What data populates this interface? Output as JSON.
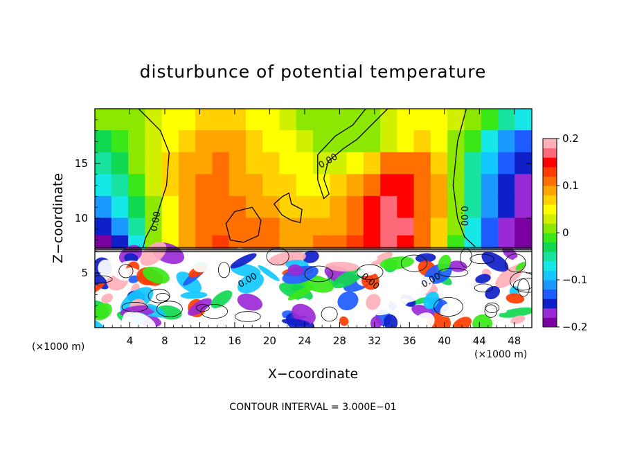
{
  "chart_data": {
    "type": "heatmap",
    "title": "disturbunce of potential temperature",
    "xlabel": "X−coordinate",
    "ylabel": "Z−coordinate",
    "x_unit_left": "(×1000 m)",
    "x_unit_right": "(×1000 m)",
    "footer": "CONTOUR INTERVAL = 3.000E−01",
    "xlim": [
      0,
      50000
    ],
    "ylim": [
      0,
      20000
    ],
    "x_ticks": [
      4000,
      8000,
      12000,
      16000,
      20000,
      24000,
      28000,
      32000,
      36000,
      40000,
      44000,
      48000
    ],
    "x_tick_labels": [
      "4",
      "8",
      "12",
      "16",
      "20",
      "24",
      "28",
      "32",
      "36",
      "40",
      "44",
      "48"
    ],
    "y_ticks": [
      5000,
      10000,
      15000
    ],
    "y_tick_labels": [
      "5",
      "10",
      "15"
    ],
    "colorbar": {
      "vmin": -0.2,
      "vmax": 0.2,
      "tick_values": [
        0.2,
        0.1,
        0,
        -0.1,
        -0.2
      ],
      "tick_labels": [
        "0.2",
        "0.1",
        "0",
        "−0.1",
        "−0.2"
      ],
      "colors": [
        "#7a00a0",
        "#9a2ad6",
        "#1020c8",
        "#1e5cff",
        "#1a98ff",
        "#12c8ff",
        "#16e8e8",
        "#18e2a0",
        "#10d850",
        "#3ae818",
        "#8ce800",
        "#d0f000",
        "#ffff00",
        "#ffd200",
        "#ffa500",
        "#ff7000",
        "#ff3c00",
        "#ff0000",
        "#ff6a7a",
        "#ffb0b8"
      ]
    },
    "contour_labels": [
      "0.00",
      "0.00",
      "0.00",
      "0.00",
      "0.00",
      "0.00"
    ],
    "upper_layer_rows": [
      {
        "z": 19000,
        "values": [
          0.0,
          0.01,
          0.02,
          0.03,
          0.04,
          0.05,
          0.06,
          0.07,
          0.06,
          0.05,
          0.04,
          0.03,
          0.02,
          0.01,
          0.0,
          0.01,
          0.02,
          0.03,
          0.04,
          0.05,
          0.05,
          0.03,
          0.01,
          -0.02,
          -0.05,
          -0.08
        ]
      },
      {
        "z": 17000,
        "values": [
          -0.03,
          -0.01,
          0.01,
          0.03,
          0.05,
          0.07,
          0.08,
          0.09,
          0.08,
          0.06,
          0.05,
          0.04,
          0.03,
          0.02,
          0.01,
          0.01,
          0.02,
          0.03,
          0.05,
          0.06,
          0.05,
          0.02,
          -0.02,
          -0.07,
          -0.11,
          -0.14
        ]
      },
      {
        "z": 15000,
        "values": [
          -0.06,
          -0.03,
          0.0,
          0.03,
          0.06,
          0.08,
          0.09,
          0.1,
          0.09,
          0.07,
          0.06,
          0.05,
          0.04,
          0.03,
          0.03,
          0.04,
          0.07,
          0.1,
          0.11,
          0.1,
          0.07,
          0.01,
          -0.05,
          -0.1,
          -0.14,
          -0.16
        ]
      },
      {
        "z": 13000,
        "values": [
          -0.08,
          -0.05,
          -0.01,
          0.03,
          0.06,
          0.08,
          0.1,
          0.1,
          0.09,
          0.08,
          0.07,
          0.06,
          0.05,
          0.05,
          0.06,
          0.09,
          0.12,
          0.14,
          0.14,
          0.12,
          0.08,
          0.0,
          -0.06,
          -0.11,
          -0.15,
          -0.17
        ]
      },
      {
        "z": 11000,
        "values": [
          -0.11,
          -0.08,
          -0.03,
          0.02,
          0.05,
          0.08,
          0.1,
          0.11,
          0.1,
          0.09,
          0.08,
          0.07,
          0.06,
          0.06,
          0.08,
          0.11,
          0.14,
          0.16,
          0.15,
          0.12,
          0.08,
          0.01,
          -0.06,
          -0.12,
          -0.16,
          -0.18
        ]
      },
      {
        "z": 9000,
        "values": [
          -0.16,
          -0.12,
          -0.05,
          0.01,
          0.05,
          0.08,
          0.11,
          0.12,
          0.12,
          0.11,
          0.1,
          0.09,
          0.08,
          0.08,
          0.09,
          0.12,
          0.15,
          0.17,
          0.16,
          0.12,
          0.07,
          0.0,
          -0.07,
          -0.13,
          -0.17,
          -0.19
        ]
      },
      {
        "z": 7800,
        "values": [
          -0.19,
          -0.15,
          -0.08,
          0.0,
          0.05,
          0.09,
          0.12,
          0.13,
          0.12,
          0.11,
          0.1,
          0.09,
          0.09,
          0.1,
          0.11,
          0.13,
          0.15,
          0.16,
          0.15,
          0.11,
          0.06,
          -0.01,
          -0.08,
          -0.14,
          -0.18,
          -0.2
        ]
      }
    ],
    "boundary_z": 7200
  }
}
